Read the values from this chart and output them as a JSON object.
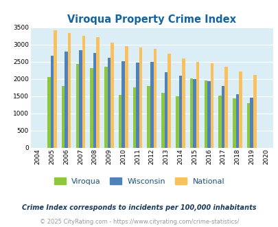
{
  "title": "Viroqua Property Crime Index",
  "years": [
    2004,
    2005,
    2006,
    2007,
    2008,
    2009,
    2010,
    2011,
    2012,
    2013,
    2014,
    2015,
    2016,
    2017,
    2018,
    2019,
    2020
  ],
  "viroqua": [
    0,
    2050,
    1800,
    2430,
    2310,
    2350,
    1530,
    1750,
    1800,
    1600,
    1490,
    2010,
    1960,
    1510,
    1440,
    1290,
    0
  ],
  "wisconsin": [
    0,
    2680,
    2800,
    2830,
    2760,
    2620,
    2510,
    2470,
    2490,
    2190,
    2100,
    1990,
    1940,
    1800,
    1560,
    1460,
    0
  ],
  "national": [
    0,
    3420,
    3340,
    3260,
    3210,
    3050,
    2950,
    2920,
    2870,
    2730,
    2600,
    2490,
    2460,
    2360,
    2210,
    2110,
    0
  ],
  "viroqua_color": "#8dc63f",
  "wisconsin_color": "#4f81bd",
  "national_color": "#fac05e",
  "bg_color": "#dceef5",
  "ylim": [
    0,
    3500
  ],
  "yticks": [
    0,
    500,
    1000,
    1500,
    2000,
    2500,
    3000,
    3500
  ],
  "legend_labels": [
    "Viroqua",
    "Wisconsin",
    "National"
  ],
  "footnote1": "Crime Index corresponds to incidents per 100,000 inhabitants",
  "footnote2": "© 2025 CityRating.com - https://www.cityrating.com/crime-statistics/",
  "title_color": "#1464a0",
  "legend_text_color": "#1a5276",
  "footnote1_color": "#1a3a5c",
  "footnote2_color": "#999999",
  "bar_width": 0.22
}
